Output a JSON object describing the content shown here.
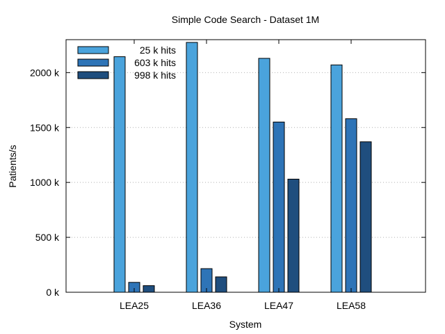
{
  "chart_data": {
    "type": "bar",
    "title": "Simple Code Search - Dataset 1M",
    "xlabel": "System",
    "ylabel": "Patients/s",
    "categories": [
      "LEA25",
      "LEA36",
      "LEA47",
      "LEA58"
    ],
    "series": [
      {
        "name": "25 k hits",
        "color": "#4aa3dc",
        "values": [
          2145,
          2275,
          2130,
          2070
        ]
      },
      {
        "name": "603 k hits",
        "color": "#2e74b7",
        "values": [
          90,
          215,
          1550,
          1580
        ]
      },
      {
        "name": "998 k hits",
        "color": "#1f4e7e",
        "values": [
          60,
          140,
          1030,
          1370
        ]
      }
    ],
    "ylim": [
      0,
      2300
    ],
    "yticks": [
      {
        "value": 0,
        "label": "0 k"
      },
      {
        "value": 500,
        "label": "500 k"
      },
      {
        "value": 1000,
        "label": "1000 k"
      },
      {
        "value": 1500,
        "label": "1500 k"
      },
      {
        "value": 2000,
        "label": "2000 k"
      }
    ],
    "grid": true,
    "legend_position": "top-left"
  }
}
